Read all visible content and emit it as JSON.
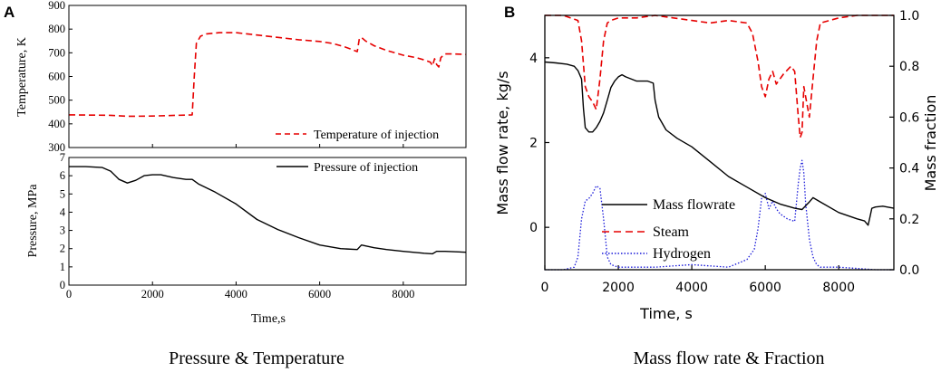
{
  "panel_a": {
    "letter": "A",
    "caption": "Pressure & Temperature",
    "xlabel": "Time,s"
  },
  "panel_b": {
    "letter": "B",
    "caption": "Mass flow rate & Fraction",
    "xlabel": "Time, s"
  },
  "colors": {
    "temperature": "#e60000",
    "pressure": "#000000",
    "mass_flowrate": "#000000",
    "steam": "#e60000",
    "hydrogen": "#1a1ad9"
  },
  "chart_data": [
    {
      "id": "a_top",
      "type": "line",
      "title": "",
      "xlabel": "",
      "ylabel": "Temperature, K",
      "xlim": [
        0,
        9500
      ],
      "ylim": [
        300,
        900
      ],
      "yticks": [
        300,
        400,
        500,
        600,
        700,
        800,
        900
      ],
      "yticklabels": [
        "300",
        "400",
        "500",
        "600",
        "700",
        "800",
        "900"
      ],
      "legend_placement": "bottom-right",
      "series": [
        {
          "name": "Temperature of injection",
          "style": "dashed",
          "x": [
            0,
            1000,
            1400,
            2000,
            2600,
            2950,
            3000,
            3050,
            3150,
            3300,
            3600,
            4000,
            4500,
            5000,
            5500,
            6000,
            6300,
            6600,
            6800,
            6900,
            6950,
            7000,
            7100,
            7300,
            7600,
            8000,
            8300,
            8500,
            8650,
            8700,
            8750,
            8800,
            8850,
            8900,
            9000,
            9200,
            9500
          ],
          "y": [
            438,
            436,
            432,
            433,
            436,
            438,
            600,
            740,
            770,
            780,
            785,
            785,
            775,
            765,
            755,
            748,
            740,
            725,
            712,
            705,
            760,
            765,
            750,
            730,
            710,
            690,
            680,
            670,
            660,
            645,
            675,
            650,
            640,
            680,
            695,
            695,
            693
          ]
        }
      ]
    },
    {
      "id": "a_bottom",
      "type": "line",
      "title": "",
      "xlabel": "Time,s",
      "ylabel": "Pressure,  MPa",
      "xlim": [
        0,
        9500
      ],
      "ylim": [
        0,
        7
      ],
      "xticks": [
        0,
        2000,
        4000,
        6000,
        8000
      ],
      "xticklabels": [
        "0",
        "2000",
        "4000",
        "6000",
        "8000"
      ],
      "yticks": [
        0,
        1,
        2,
        3,
        4,
        5,
        6,
        7
      ],
      "yticklabels": [
        "0",
        "1",
        "2",
        "3",
        "4",
        "5",
        "6",
        "7"
      ],
      "legend_placement": "top-right",
      "series": [
        {
          "name": "Pressure of injection",
          "style": "solid",
          "x": [
            0,
            400,
            800,
            1000,
            1200,
            1400,
            1600,
            1800,
            2000,
            2200,
            2500,
            2800,
            2950,
            3100,
            3500,
            4000,
            4500,
            5000,
            5500,
            6000,
            6500,
            6900,
            7000,
            7100,
            7300,
            7600,
            8000,
            8500,
            8700,
            8800,
            9000,
            9500
          ],
          "y": [
            6.5,
            6.5,
            6.45,
            6.25,
            5.8,
            5.6,
            5.75,
            6.0,
            6.05,
            6.05,
            5.9,
            5.8,
            5.8,
            5.55,
            5.1,
            4.45,
            3.6,
            3.05,
            2.6,
            2.2,
            2.0,
            1.95,
            2.2,
            2.15,
            2.05,
            1.95,
            1.85,
            1.75,
            1.72,
            1.85,
            1.85,
            1.8
          ]
        }
      ]
    },
    {
      "id": "b",
      "type": "line",
      "title": "",
      "xlabel": "Time, s",
      "ylabel": "Mass flow rate, kg/s",
      "ylabel_right": "Mass fraction",
      "xlim": [
        0,
        9500
      ],
      "ylim": [
        -1,
        5
      ],
      "ylim_right": [
        0,
        1.0
      ],
      "xticks": [
        0,
        2000,
        4000,
        6000,
        8000
      ],
      "xticklabels": [
        "0",
        "2000",
        "4000",
        "6000",
        "8000"
      ],
      "yticks": [
        0,
        2,
        4
      ],
      "yticklabels": [
        "0",
        "2",
        "4"
      ],
      "yticks_right": [
        0.0,
        0.2,
        0.4,
        0.6,
        0.8,
        1.0
      ],
      "yticklabels_right": [
        "0.0",
        "0.2",
        "0.4",
        "0.6",
        "0.8",
        "1.0"
      ],
      "legend_placement": "bottom-center",
      "series": [
        {
          "name": "Mass flowrate",
          "axis": "left",
          "style": "solid",
          "x": [
            0,
            300,
            600,
            800,
            900,
            1000,
            1050,
            1100,
            1200,
            1300,
            1400,
            1500,
            1600,
            1700,
            1800,
            1900,
            2000,
            2100,
            2200,
            2500,
            2800,
            2950,
            3000,
            3100,
            3300,
            3600,
            4000,
            4500,
            5000,
            5500,
            6000,
            6400,
            6800,
            7000,
            7200,
            7300,
            7500,
            8000,
            8500,
            8700,
            8800,
            8850,
            8900,
            9000,
            9200,
            9500
          ],
          "y": [
            3.9,
            3.88,
            3.85,
            3.8,
            3.7,
            3.5,
            2.8,
            2.35,
            2.25,
            2.25,
            2.35,
            2.5,
            2.7,
            3.0,
            3.3,
            3.45,
            3.55,
            3.6,
            3.55,
            3.45,
            3.45,
            3.4,
            3.0,
            2.6,
            2.3,
            2.1,
            1.9,
            1.55,
            1.2,
            0.95,
            0.7,
            0.55,
            0.45,
            0.42,
            0.6,
            0.7,
            0.6,
            0.35,
            0.2,
            0.15,
            0.05,
            0.25,
            0.45,
            0.48,
            0.5,
            0.45
          ]
        },
        {
          "name": "Steam",
          "axis": "right",
          "style": "dashed",
          "x": [
            0,
            500,
            900,
            1000,
            1100,
            1200,
            1300,
            1400,
            1500,
            1600,
            1700,
            1800,
            2000,
            2500,
            3000,
            3500,
            4000,
            4500,
            5000,
            5500,
            5650,
            5800,
            5900,
            6000,
            6100,
            6200,
            6300,
            6500,
            6700,
            6800,
            6900,
            6950,
            7000,
            7050,
            7100,
            7200,
            7300,
            7400,
            7500,
            8000,
            8500,
            9000,
            9500
          ],
          "y": [
            1.0,
            1.0,
            0.98,
            0.9,
            0.72,
            0.68,
            0.66,
            0.63,
            0.75,
            0.9,
            0.97,
            0.98,
            0.99,
            0.99,
            1.0,
            0.99,
            0.98,
            0.97,
            0.98,
            0.97,
            0.93,
            0.82,
            0.72,
            0.68,
            0.75,
            0.78,
            0.73,
            0.77,
            0.8,
            0.78,
            0.6,
            0.52,
            0.54,
            0.72,
            0.68,
            0.6,
            0.75,
            0.9,
            0.97,
            0.99,
            1.0,
            1.0,
            1.0
          ]
        },
        {
          "name": "Hydrogen",
          "axis": "right",
          "style": "dotted",
          "x": [
            0,
            500,
            800,
            900,
            1000,
            1100,
            1200,
            1300,
            1400,
            1500,
            1600,
            1700,
            1800,
            2000,
            2500,
            3000,
            4000,
            5000,
            5500,
            5700,
            5800,
            5900,
            6000,
            6100,
            6200,
            6300,
            6400,
            6600,
            6800,
            6900,
            6950,
            7000,
            7050,
            7100,
            7200,
            7300,
            7400,
            7500,
            8000,
            9000,
            9500
          ],
          "y": [
            0.0,
            0.0,
            0.01,
            0.05,
            0.2,
            0.27,
            0.28,
            0.3,
            0.33,
            0.32,
            0.2,
            0.05,
            0.02,
            0.01,
            0.01,
            0.01,
            0.02,
            0.01,
            0.04,
            0.08,
            0.16,
            0.28,
            0.3,
            0.24,
            0.27,
            0.24,
            0.22,
            0.2,
            0.19,
            0.34,
            0.4,
            0.43,
            0.38,
            0.26,
            0.12,
            0.05,
            0.02,
            0.01,
            0.01,
            0.0,
            0.0
          ]
        }
      ]
    }
  ]
}
